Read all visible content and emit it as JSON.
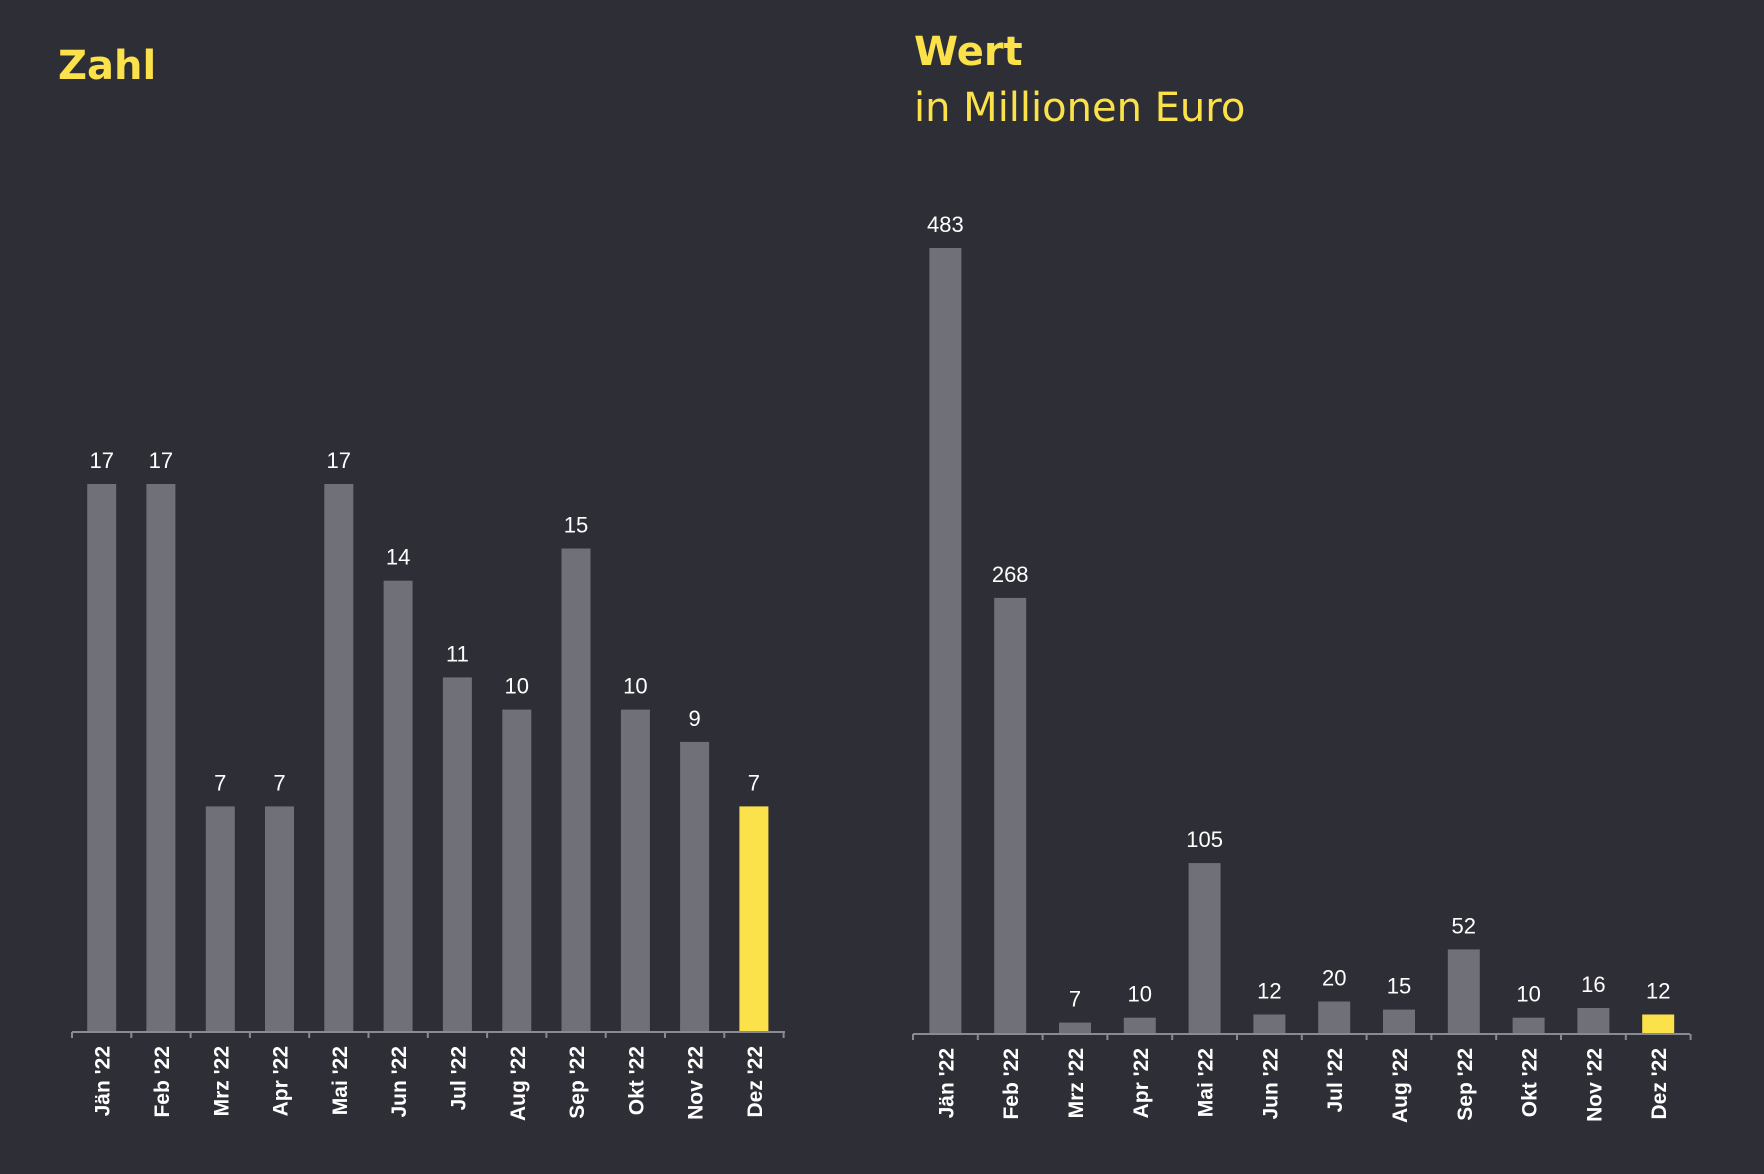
{
  "colors": {
    "background": "#2e2e36",
    "bar": "#707078",
    "highlight": "#fbe14a",
    "axis": "#8a8a92",
    "label": "#ffffff"
  },
  "chart_data": [
    {
      "type": "bar",
      "title": "Zahl",
      "subtitle": "",
      "categories": [
        "Jän '22",
        "Feb '22",
        "Mrz '22",
        "Apr '22",
        "Mai '22",
        "Jun '22",
        "Jul '22",
        "Aug '22",
        "Sep '22",
        "Okt '22",
        "Nov '22",
        "Dez '22"
      ],
      "values": [
        17,
        17,
        7,
        7,
        17,
        14,
        11,
        10,
        15,
        10,
        9,
        7
      ],
      "highlight_index": 11,
      "data_labels": true,
      "ylim": [
        0,
        17
      ],
      "grid": false,
      "legend": "none"
    },
    {
      "type": "bar",
      "title": "Wert",
      "subtitle": "in Millionen Euro",
      "categories": [
        "Jän '22",
        "Feb '22",
        "Mrz '22",
        "Apr '22",
        "Mai '22",
        "Jun '22",
        "Jul '22",
        "Aug '22",
        "Sep '22",
        "Okt '22",
        "Nov '22",
        "Dez '22"
      ],
      "values": [
        483,
        268,
        7,
        10,
        105,
        12,
        20,
        15,
        52,
        10,
        16,
        12
      ],
      "highlight_index": 11,
      "data_labels": true,
      "ylim": [
        0,
        483
      ],
      "grid": false,
      "legend": "none"
    }
  ]
}
